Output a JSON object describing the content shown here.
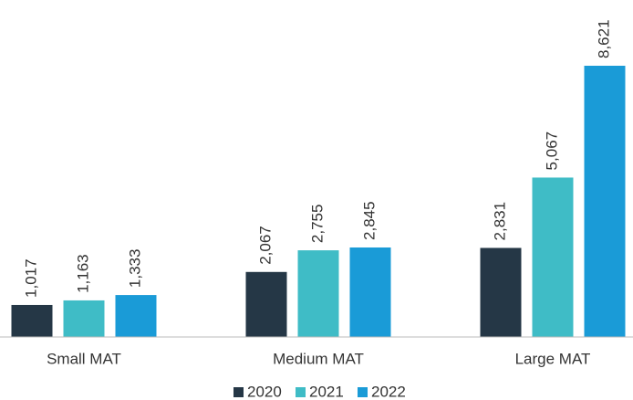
{
  "chart_data": {
    "type": "bar",
    "categories": [
      "Small MAT",
      "Medium MAT",
      "Large MAT"
    ],
    "series": [
      {
        "name": "2020",
        "color": "#253746",
        "values": [
          1017,
          2067,
          2831
        ],
        "value_labels": [
          "1,017",
          "2,067",
          "2,831"
        ]
      },
      {
        "name": "2021",
        "color": "#3fbcc6",
        "values": [
          1163,
          2755,
          5067
        ],
        "value_labels": [
          "1,163",
          "2,755",
          "5,067"
        ]
      },
      {
        "name": "2022",
        "color": "#1a9bd7",
        "values": [
          1333,
          2845,
          8621
        ],
        "value_labels": [
          "1,333",
          "2,845",
          "8,621"
        ]
      }
    ],
    "legend": "bottom"
  }
}
